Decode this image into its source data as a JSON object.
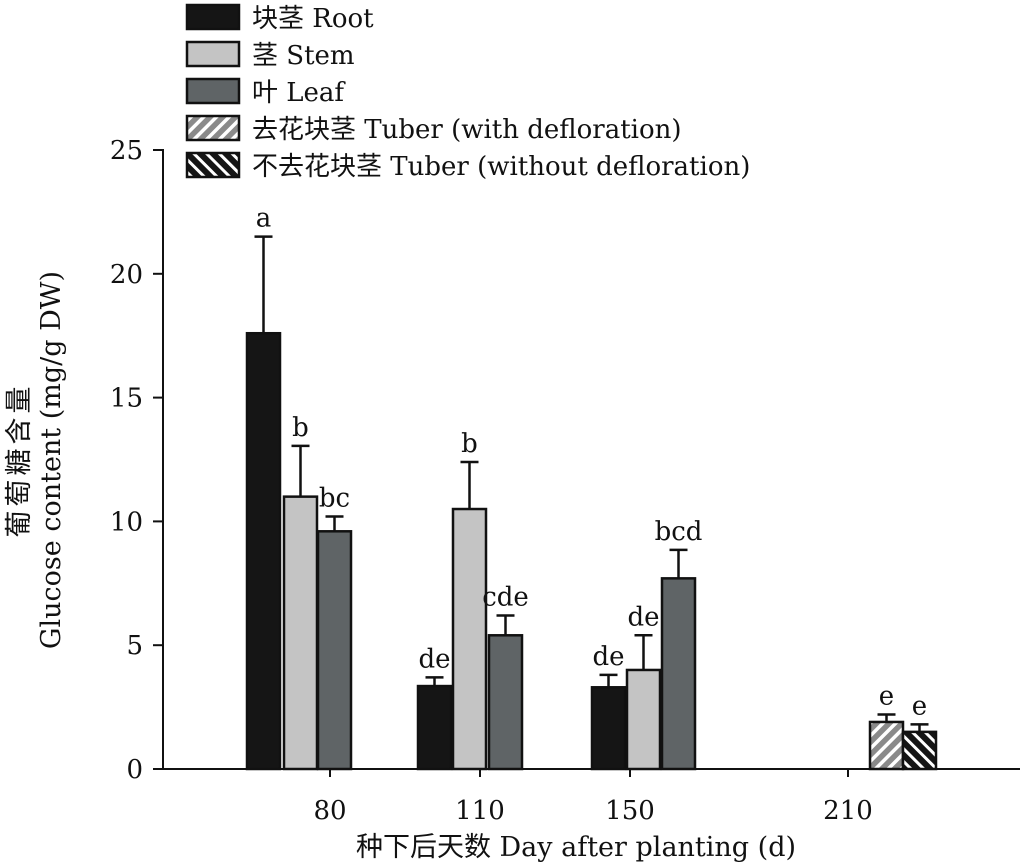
{
  "chart_data": {
    "type": "bar",
    "title": "",
    "xlabel": "种下后天数 Day after planting (d)",
    "ylabel_cn": "葡萄糖含量",
    "ylabel": "Glucose content (mg/g DW)",
    "ylim": [
      0,
      25
    ],
    "yticks": [
      "0",
      "5",
      "10",
      "15",
      "20",
      "25"
    ],
    "categories": [
      "80",
      "110",
      "150",
      "210"
    ],
    "legend_position": "top-left",
    "series": [
      {
        "name": "块茎 Root",
        "color": "#151515",
        "pattern": "solid",
        "values": [
          17.6,
          3.35,
          3.3,
          null
        ],
        "errors": [
          3.9,
          0.35,
          0.5,
          null
        ],
        "labels": [
          "a",
          "de",
          "de",
          ""
        ]
      },
      {
        "name": "茎 Stem",
        "color": "#c4c4c4",
        "pattern": "solid",
        "values": [
          11.0,
          10.5,
          4.0,
          null
        ],
        "errors": [
          2.05,
          1.9,
          1.4,
          null
        ],
        "labels": [
          "b",
          "b",
          "de",
          ""
        ]
      },
      {
        "name": "叶 Leaf",
        "color": "#5f6466",
        "pattern": "solid",
        "values": [
          9.6,
          5.4,
          7.7,
          null
        ],
        "errors": [
          0.6,
          0.8,
          1.15,
          null
        ],
        "labels": [
          "bc",
          "cde",
          "bcd",
          ""
        ]
      },
      {
        "name": "去花块茎 Tuber (with defloration)",
        "color": "#8a8a8a",
        "pattern": "hatch-light",
        "values": [
          null,
          null,
          null,
          1.9
        ],
        "errors": [
          null,
          null,
          null,
          0.3
        ],
        "labels": [
          "",
          "",
          "",
          "e"
        ]
      },
      {
        "name": "不去花块茎 Tuber (without defloration)",
        "color": "#151515",
        "pattern": "hatch-dark",
        "values": [
          null,
          null,
          null,
          1.5
        ],
        "errors": [
          null,
          null,
          null,
          0.3
        ],
        "labels": [
          "",
          "",
          "",
          "e"
        ]
      }
    ]
  }
}
